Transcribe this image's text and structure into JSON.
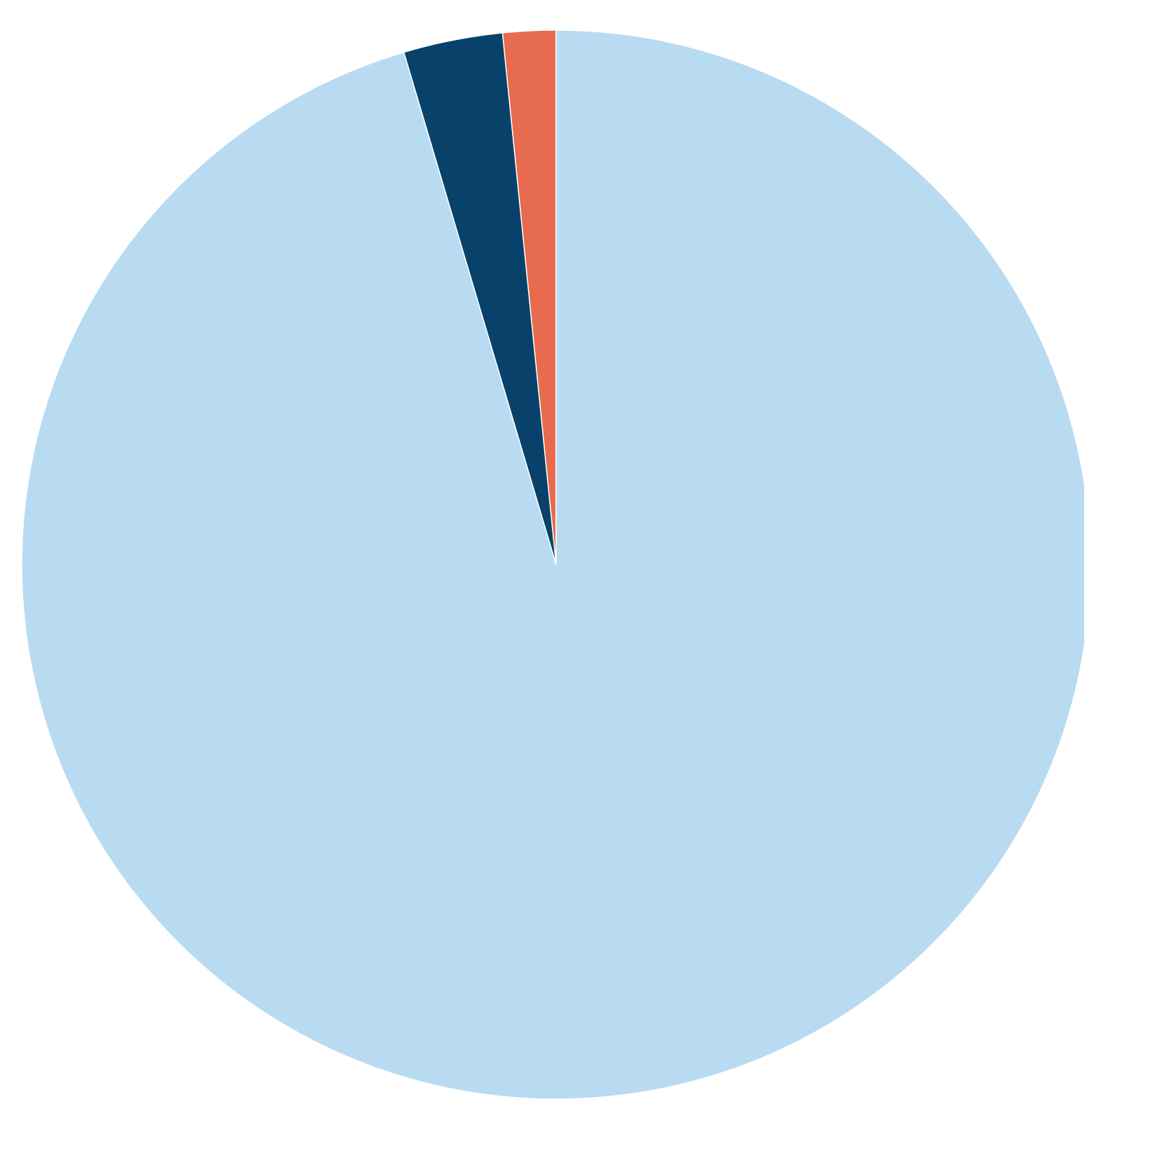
{
  "chart_data": {
    "type": "pie",
    "title": "",
    "start_angle_deg": 0,
    "direction": "counterclockwise",
    "legend": "none",
    "slices": [
      {
        "value": 1.6,
        "color": "#e76b4f"
      },
      {
        "value": 3.0,
        "color": "#08426a"
      },
      {
        "value": 95.4,
        "color": "#b8dbf2"
      }
    ]
  }
}
